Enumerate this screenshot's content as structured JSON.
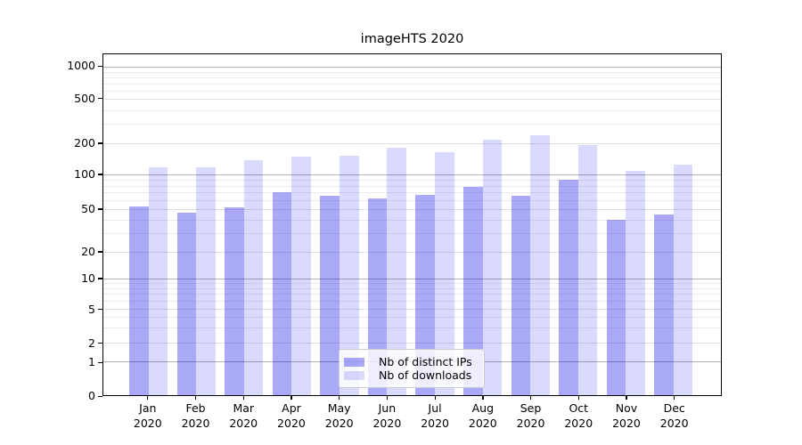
{
  "chart_data": {
    "type": "bar",
    "title": "imageHTS 2020",
    "months": [
      "Jan",
      "Feb",
      "Mar",
      "Apr",
      "May",
      "Jun",
      "Jul",
      "Aug",
      "Sep",
      "Oct",
      "Nov",
      "Dec"
    ],
    "year": "2020",
    "series": [
      {
        "name": "Nb of distinct IPs",
        "color": "rgba(10,10,235,0.35)",
        "values": [
          53,
          46,
          52,
          70,
          66,
          62,
          67,
          78,
          66,
          90,
          40,
          45
        ]
      },
      {
        "name": "Nb of downloads",
        "color": "rgba(10,10,235,0.15)",
        "values": [
          119,
          119,
          139,
          151,
          154,
          184,
          167,
          216,
          238,
          193,
          109,
          124
        ]
      }
    ],
    "yscale": "symlog",
    "y_ticks": [
      0,
      1,
      2,
      5,
      10,
      20,
      50,
      100,
      200,
      500,
      1000
    ],
    "y_minor_ticks": [
      3,
      4,
      6,
      7,
      8,
      9,
      30,
      40,
      60,
      70,
      80,
      90,
      300,
      400,
      600,
      700,
      800,
      900
    ],
    "ylim": [
      0,
      1300
    ],
    "grid": true,
    "legend_position": "lower center",
    "colors": {
      "grid_major": "#b2b2b2",
      "grid_labeled": "#e0e0e0",
      "grid_minor": "#ebebeb",
      "axis_frame": "#000000",
      "text": "#000000",
      "background": "#ffffff"
    }
  }
}
